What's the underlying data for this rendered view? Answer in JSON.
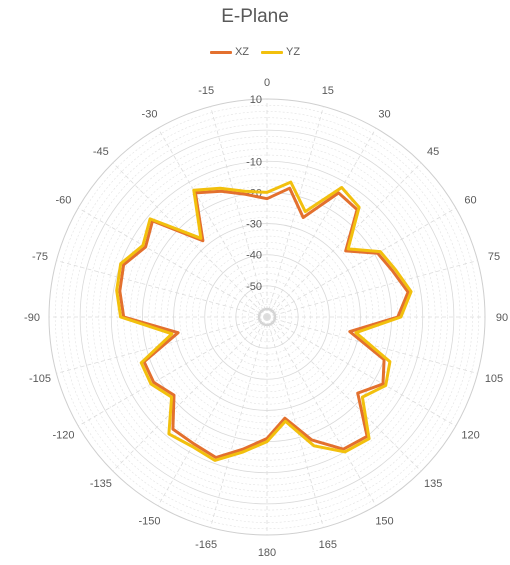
{
  "chart_data": {
    "type": "radar",
    "title": "E-Plane",
    "angles": [
      "0",
      "15",
      "30",
      "45",
      "60",
      "75",
      "90",
      "105",
      "120",
      "135",
      "150",
      "165",
      "180",
      "-165",
      "-150",
      "-135",
      "-120",
      "-105",
      "-90",
      "-75",
      "-60",
      "-45",
      "-30",
      "-15"
    ],
    "r_ticks": [
      "10",
      "-10",
      "-20",
      "-30",
      "-40",
      "-50"
    ],
    "r_axis": {
      "min": -60,
      "max": 10,
      "step": 10
    },
    "legend_position": "top",
    "series": [
      {
        "name": "XZ",
        "color": "#E3702E",
        "azimuth": [
          0,
          10,
          20,
          30,
          40,
          50,
          60,
          70,
          80,
          90,
          100,
          110,
          120,
          130,
          140,
          150,
          160,
          170,
          180,
          190,
          200,
          210,
          220,
          230,
          240,
          250,
          260,
          270,
          280,
          290,
          300,
          310,
          320,
          330,
          340,
          350
        ],
        "values": [
          -22,
          -18,
          -26,
          -14,
          -15,
          -27,
          -19,
          -17,
          -14,
          -18,
          -33,
          -20,
          -17,
          -22,
          -10,
          -11,
          -18,
          -27,
          -21,
          -17,
          -12,
          -13,
          -13,
          -21,
          -18,
          -18,
          -31,
          -14,
          -12,
          -11,
          -15,
          -12,
          -28,
          -14,
          -17,
          -20
        ]
      },
      {
        "name": "YZ",
        "color": "#F2C00D",
        "azimuth": [
          0,
          10,
          20,
          30,
          40,
          50,
          60,
          70,
          80,
          90,
          100,
          110,
          120,
          130,
          140,
          150,
          160,
          170,
          180,
          190,
          200,
          210,
          220,
          230,
          240,
          250,
          260,
          270,
          280,
          290,
          300,
          310,
          320,
          330,
          340,
          350
        ],
        "values": [
          -20,
          -16,
          -24,
          -12,
          -14,
          -26,
          -18,
          -16,
          -13,
          -17,
          -31,
          -18,
          -16,
          -20,
          -9,
          -10,
          -16,
          -26,
          -20,
          -16,
          -11,
          -12,
          -11,
          -20,
          -17,
          -17,
          -29,
          -13,
          -11,
          -10,
          -14,
          -11,
          -27,
          -13,
          -16,
          -19
        ]
      }
    ]
  }
}
